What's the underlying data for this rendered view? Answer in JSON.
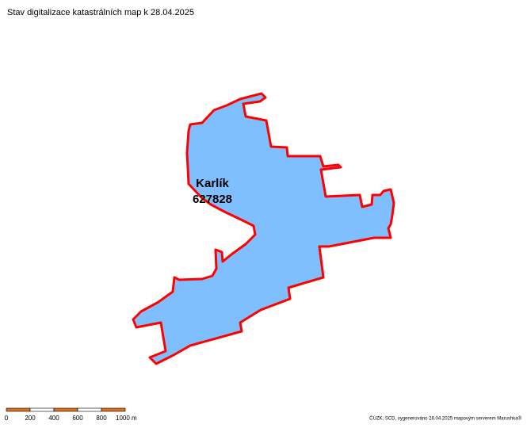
{
  "header": {
    "title": "Stav digitalizace katastrálních map k 28.04.2025"
  },
  "area": {
    "name": "Karlík",
    "code": "627828"
  },
  "scale": {
    "labels": [
      "0",
      "200",
      "400",
      "600",
      "800",
      "1000 m"
    ]
  },
  "footer": {
    "credit": "ČÚZK, SCD, vygenerováno 28.04.2025 mapovým serverem Marushka®"
  }
}
